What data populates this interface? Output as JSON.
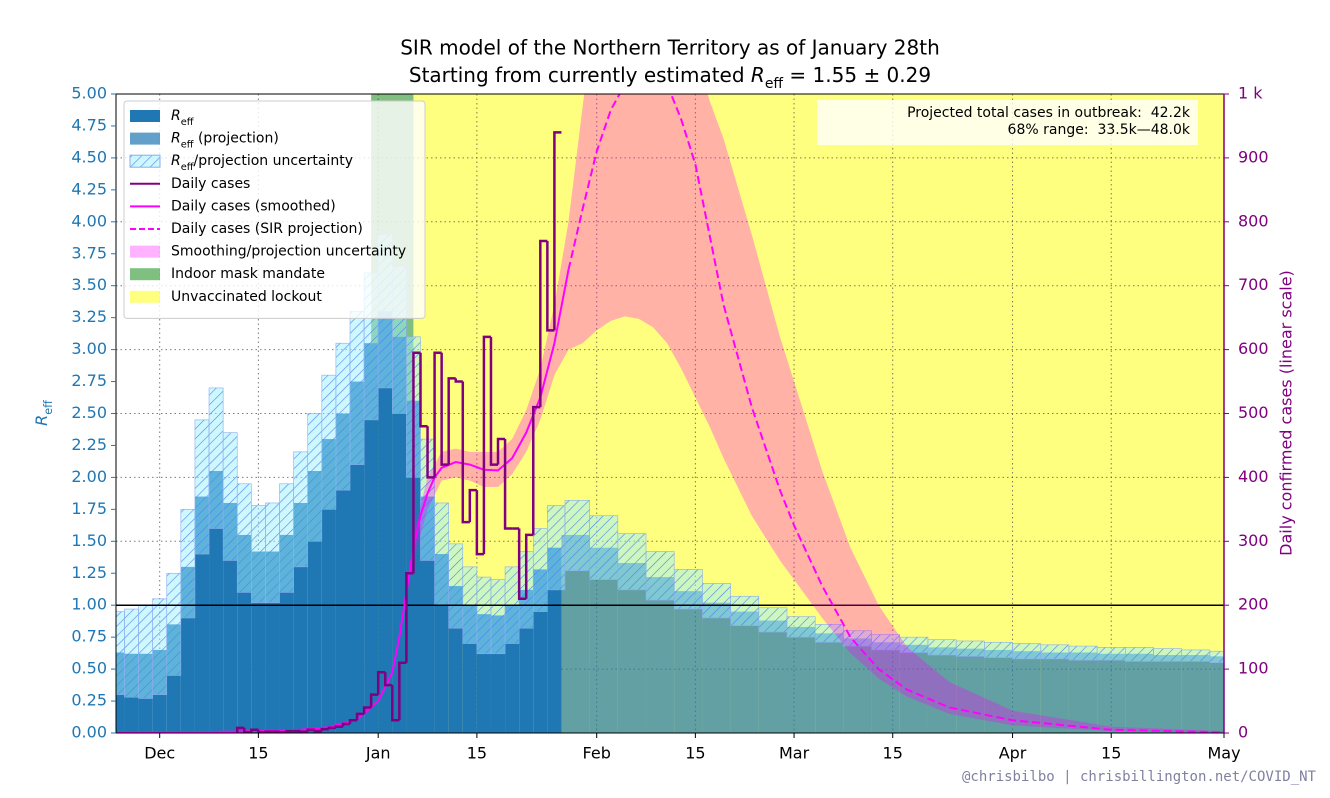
{
  "chart_data": {
    "type": "sir",
    "title": "SIR model of the Northern Territory as of January 28th",
    "subtitle": [
      "Starting from currently estimated ",
      "R",
      "eff",
      " = 1.55 ± 0.29"
    ],
    "y_label": [
      "R",
      "eff"
    ],
    "y2_label": "Daily confirmed cases (linear scale)",
    "credit": "@chrisbilbo | chrisbillington.net/COVID_NT",
    "annotation": [
      "Projected total cases in outbreak:  42.2k",
      "68% range:  33.5k—48.0k"
    ],
    "xlim": [
      -6.2,
      151
    ],
    "xticks": [
      {
        "value": 0,
        "label": "Dec"
      },
      {
        "value": 14,
        "label": "15"
      },
      {
        "value": 31,
        "label": "Jan"
      },
      {
        "value": 45,
        "label": "15"
      },
      {
        "value": 62,
        "label": "Feb"
      },
      {
        "value": 76,
        "label": "15"
      },
      {
        "value": 90,
        "label": "Mar"
      },
      {
        "value": 104,
        "label": "15"
      },
      {
        "value": 121,
        "label": "Apr"
      },
      {
        "value": 135,
        "label": "15"
      },
      {
        "value": 151,
        "label": "May"
      }
    ],
    "ylim": [
      0,
      5
    ],
    "yticks": [
      {
        "value": 0,
        "label": "0.00"
      },
      {
        "value": 0.25,
        "label": "0.25"
      },
      {
        "value": 0.5,
        "label": "0.50"
      },
      {
        "value": 0.75,
        "label": "0.75"
      },
      {
        "value": 1,
        "label": "1.00"
      },
      {
        "value": 1.25,
        "label": "1.25"
      },
      {
        "value": 1.5,
        "label": "1.50"
      },
      {
        "value": 1.75,
        "label": "1.75"
      },
      {
        "value": 2,
        "label": "2.00"
      },
      {
        "value": 2.25,
        "label": "2.25"
      },
      {
        "value": 2.5,
        "label": "2.50"
      },
      {
        "value": 2.75,
        "label": "2.75"
      },
      {
        "value": 3,
        "label": "3.00"
      },
      {
        "value": 3.25,
        "label": "3.25"
      },
      {
        "value": 3.5,
        "label": "3.50"
      },
      {
        "value": 3.75,
        "label": "3.75"
      },
      {
        "value": 4,
        "label": "4.00"
      },
      {
        "value": 4.25,
        "label": "4.25"
      },
      {
        "value": 4.5,
        "label": "4.50"
      },
      {
        "value": 4.75,
        "label": "4.75"
      },
      {
        "value": 5,
        "label": "5.00"
      }
    ],
    "y2lim": [
      0,
      1000
    ],
    "y2ticks": [
      0,
      100,
      200,
      300,
      400,
      500,
      600,
      700,
      800,
      900,
      {
        "value": 1000,
        "label": "1 k"
      }
    ],
    "grid": true,
    "legend": "upper left",
    "hline": 1,
    "series": [
      {
        "name": [
          "R",
          "eff"
        ],
        "kind": "bar",
        "color": "#1f77b4",
        "alpha": 1,
        "x": [
          -6,
          -4,
          -2,
          0,
          2,
          4,
          6,
          8,
          10,
          12,
          14,
          16,
          18,
          20,
          22,
          24,
          26,
          28,
          30,
          32,
          34,
          36,
          38,
          40,
          42,
          44,
          46,
          48,
          50,
          52,
          54,
          56
        ],
        "values": [
          0.63,
          0.62,
          0.62,
          0.65,
          0.85,
          1.3,
          1.85,
          2.05,
          1.8,
          1.55,
          1.42,
          1.42,
          1.55,
          1.8,
          2.05,
          2.3,
          2.5,
          2.75,
          3.05,
          3.3,
          3.1,
          2.6,
          1.85,
          1.4,
          1.15,
          1.0,
          0.93,
          0.92,
          1.0,
          1.12,
          1.28,
          1.45
        ]
      },
      {
        "name": [
          "R",
          "eff",
          " (projection)"
        ],
        "kind": "bar",
        "color": "#1f77b4",
        "alpha": 0.7,
        "x": [
          59,
          63,
          67,
          71,
          75,
          79,
          83,
          87,
          91,
          95,
          99,
          103,
          107,
          111,
          115,
          119,
          123,
          127,
          131,
          135,
          139,
          143,
          147,
          151
        ],
        "values": [
          1.55,
          1.45,
          1.33,
          1.22,
          1.11,
          1.02,
          0.95,
          0.88,
          0.83,
          0.78,
          0.74,
          0.71,
          0.69,
          0.67,
          0.66,
          0.65,
          0.64,
          0.63,
          0.63,
          0.62,
          0.62,
          0.61,
          0.61,
          0.6
        ]
      },
      {
        "name": [
          "R",
          "eff",
          "/projection uncertainty"
        ],
        "kind": "band",
        "color": "#9eefff",
        "alpha": 0.5,
        "hatch_color": "#4a86e8",
        "x": [
          -6,
          -4,
          -2,
          0,
          2,
          4,
          6,
          8,
          10,
          12,
          14,
          16,
          18,
          20,
          22,
          24,
          26,
          28,
          30,
          32,
          34,
          36,
          38,
          40,
          42,
          44,
          46,
          48,
          50,
          52,
          54,
          56,
          59,
          63,
          67,
          71,
          75,
          79,
          83,
          87,
          91,
          95,
          99,
          103,
          107,
          111,
          115,
          119,
          123,
          127,
          131,
          135,
          139,
          143,
          147,
          151
        ],
        "lower": [
          0.3,
          0.28,
          0.27,
          0.3,
          0.45,
          0.9,
          1.4,
          1.6,
          1.35,
          1.1,
          1.02,
          1.02,
          1.1,
          1.3,
          1.5,
          1.75,
          1.9,
          2.1,
          2.45,
          2.7,
          2.5,
          2.0,
          1.35,
          1.0,
          0.82,
          0.7,
          0.62,
          0.62,
          0.7,
          0.82,
          0.95,
          1.12,
          1.27,
          1.2,
          1.12,
          1.04,
          0.97,
          0.9,
          0.84,
          0.79,
          0.75,
          0.71,
          0.68,
          0.65,
          0.63,
          0.61,
          0.6,
          0.59,
          0.58,
          0.58,
          0.57,
          0.57,
          0.56,
          0.56,
          0.56,
          0.55
        ],
        "upper": [
          0.95,
          0.97,
          1.0,
          1.05,
          1.25,
          1.75,
          2.45,
          2.7,
          2.35,
          1.95,
          1.78,
          1.8,
          1.95,
          2.2,
          2.5,
          2.8,
          3.05,
          3.3,
          3.6,
          3.9,
          3.65,
          3.1,
          2.3,
          1.8,
          1.48,
          1.3,
          1.22,
          1.2,
          1.3,
          1.42,
          1.6,
          1.78,
          1.82,
          1.7,
          1.56,
          1.42,
          1.28,
          1.17,
          1.07,
          0.98,
          0.91,
          0.85,
          0.8,
          0.77,
          0.75,
          0.73,
          0.72,
          0.71,
          0.7,
          0.69,
          0.68,
          0.67,
          0.67,
          0.66,
          0.65,
          0.64
        ]
      },
      {
        "name": "Daily cases",
        "kind": "step",
        "axis": "y2",
        "color": "#800080",
        "x": [
          11,
          12,
          13,
          14,
          15,
          16,
          17,
          18,
          19,
          20,
          21,
          22,
          23,
          24,
          25,
          26,
          27,
          28,
          29,
          30,
          31,
          32,
          33,
          34,
          35,
          36,
          37,
          38,
          39,
          40,
          41,
          42,
          43,
          44,
          45,
          46,
          47,
          48,
          49,
          50,
          51,
          52,
          53,
          54,
          55,
          56
        ],
        "values": [
          8,
          1,
          5,
          1,
          2,
          2,
          1,
          3,
          3,
          2,
          5,
          3,
          6,
          8,
          10,
          14,
          20,
          30,
          40,
          60,
          95,
          75,
          20,
          110,
          250,
          595,
          480,
          400,
          595,
          420,
          555,
          550,
          330,
          380,
          280,
          620,
          420,
          460,
          320,
          320,
          210,
          310,
          510,
          770,
          630,
          940
        ]
      },
      {
        "name": "Daily cases (smoothed)",
        "kind": "line",
        "axis": "y2",
        "color": "#ff00ff",
        "x": [
          -6,
          10,
          20,
          24,
          28,
          31,
          33,
          34,
          35,
          36,
          37,
          38,
          39,
          40,
          42,
          44,
          46,
          48,
          50,
          52,
          54,
          56,
          58
        ],
        "values": [
          0,
          2,
          5,
          9,
          21,
          50,
          95,
          150,
          220,
          290,
          340,
          375,
          400,
          415,
          424,
          420,
          412,
          411,
          430,
          470,
          525,
          610,
          725
        ]
      },
      {
        "name": "Daily cases (SIR projection)",
        "kind": "line",
        "axis": "y2",
        "color": "#ff00ff",
        "dash": true,
        "x": [
          58,
          60,
          62,
          64,
          66,
          68,
          70,
          72,
          74,
          76,
          78,
          80,
          82,
          84,
          86,
          88,
          90,
          94,
          98,
          102,
          106,
          112,
          121,
          135,
          151
        ],
        "values": [
          725,
          820,
          910,
          975,
          1015,
          1040,
          1040,
          1015,
          960,
          890,
          780,
          670,
          590,
          510,
          445,
          380,
          325,
          230,
          150,
          100,
          68,
          40,
          20,
          5,
          1
        ]
      },
      {
        "name": "Smoothing/projection uncertainty",
        "kind": "area",
        "axis": "y2",
        "color": "#ff00ff",
        "alpha": 0.3,
        "x": [
          36,
          38,
          40,
          42,
          44,
          46,
          48,
          50,
          52,
          54,
          56,
          58,
          60,
          62,
          64,
          66,
          68,
          70,
          72,
          74,
          76,
          78,
          80,
          84,
          88,
          90,
          94,
          98,
          102,
          106,
          112,
          121,
          135,
          151
        ],
        "lower": [
          270,
          350,
          395,
          400,
          395,
          385,
          385,
          405,
          440,
          490,
          560,
          600,
          610,
          630,
          645,
          652,
          648,
          635,
          610,
          570,
          525,
          480,
          430,
          340,
          270,
          240,
          180,
          125,
          85,
          57,
          30,
          12,
          3,
          0
        ],
        "upper": [
          310,
          400,
          440,
          445,
          440,
          440,
          440,
          460,
          505,
          570,
          670,
          800,
          980,
          1150,
          1280,
          1350,
          1400,
          1400,
          1330,
          1200,
          1070,
          990,
          930,
          780,
          620,
          550,
          410,
          290,
          200,
          135,
          80,
          35,
          10,
          3
        ]
      }
    ],
    "spans": [
      {
        "name": "Indoor mask mandate",
        "color": "#008000",
        "alpha": 0.5,
        "x": [
          30,
          36
        ]
      },
      {
        "name": "Unvaccinated lockout",
        "color": "#ffff00",
        "alpha": 0.5,
        "x": [
          36,
          151
        ]
      }
    ]
  }
}
